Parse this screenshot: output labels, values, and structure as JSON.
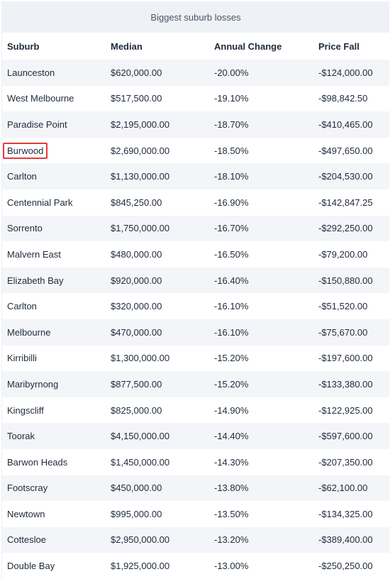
{
  "table": {
    "caption": "Biggest suburb losses",
    "headers": [
      "Suburb",
      "Median",
      "Annual Change",
      "Price Fall"
    ],
    "rows": [
      [
        "Launceston",
        "$620,000.00",
        "-20.00%",
        "-$124,000.00"
      ],
      [
        "West Melbourne",
        "$517,500.00",
        "-19.10%",
        "-$98,842.50"
      ],
      [
        "Paradise Point",
        "$2,195,000.00",
        "-18.70%",
        "-$410,465.00"
      ],
      [
        "Burwood",
        "$2,690,000.00",
        "-18.50%",
        "-$497,650.00"
      ],
      [
        "Carlton",
        "$1,130,000.00",
        "-18.10%",
        "-$204,530.00"
      ],
      [
        "Centennial Park",
        "$845,250.00",
        "-16.90%",
        "-$142,847.25"
      ],
      [
        "Sorrento",
        "$1,750,000.00",
        "-16.70%",
        "-$292,250.00"
      ],
      [
        "Malvern East",
        "$480,000.00",
        "-16.50%",
        "-$79,200.00"
      ],
      [
        "Elizabeth Bay",
        "$920,000.00",
        "-16.40%",
        "-$150,880.00"
      ],
      [
        "Carlton",
        "$320,000.00",
        "-16.10%",
        "-$51,520.00"
      ],
      [
        "Melbourne",
        "$470,000.00",
        "-16.10%",
        "-$75,670.00"
      ],
      [
        "Kirribilli",
        "$1,300,000.00",
        "-15.20%",
        "-$197,600.00"
      ],
      [
        "Maribyrnong",
        "$877,500.00",
        "-15.20%",
        "-$133,380.00"
      ],
      [
        "Kingscliff",
        "$825,000.00",
        "-14.90%",
        "-$122,925.00"
      ],
      [
        "Toorak",
        "$4,150,000.00",
        "-14.40%",
        "-$597,600.00"
      ],
      [
        "Barwon Heads",
        "$1,450,000.00",
        "-14.30%",
        "-$207,350.00"
      ],
      [
        "Footscray",
        "$450,000.00",
        "-13.80%",
        "-$62,100.00"
      ],
      [
        "Newtown",
        "$995,000.00",
        "-13.50%",
        "-$134,325.00"
      ],
      [
        "Cottesloe",
        "$2,950,000.00",
        "-13.20%",
        "-$389,400.00"
      ],
      [
        "Double Bay",
        "$1,925,000.00",
        "-13.00%",
        "-$250,250.00"
      ]
    ],
    "highlighted_row": 3,
    "highlight_color": "#e63a3a"
  }
}
